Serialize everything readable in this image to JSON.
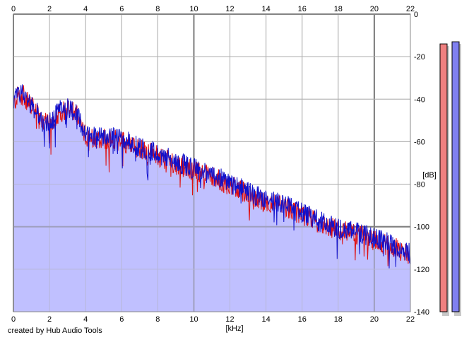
{
  "chart_data": {
    "type": "area",
    "title": "",
    "xlabel": "[kHz]",
    "ylabel": "[dB]",
    "xlim": [
      0,
      22
    ],
    "ylim": [
      -140,
      0
    ],
    "x_ticks": [
      0,
      2,
      4,
      6,
      8,
      10,
      12,
      14,
      16,
      18,
      20,
      22
    ],
    "y_ticks": [
      0,
      -20,
      -40,
      -60,
      -80,
      -100,
      -120,
      -140
    ],
    "grid": true,
    "legend": "none",
    "spectrum_envelope": {
      "x_khz": [
        0,
        0.3,
        0.6,
        1.0,
        1.5,
        2.0,
        2.5,
        3.0,
        3.5,
        4.0,
        5.0,
        6.0,
        7.0,
        8.0,
        9.0,
        10.0,
        11.0,
        12.0,
        13.0,
        14.0,
        15.0,
        16.0,
        17.0,
        18.0,
        19.0,
        20.0,
        21.0,
        22.0
      ],
      "y_db": [
        -42,
        -37,
        -38,
        -43,
        -49,
        -52,
        -46,
        -44,
        -47,
        -57,
        -58,
        -59,
        -63,
        -66,
        -70,
        -73,
        -76,
        -80,
        -84,
        -88,
        -90,
        -94,
        -98,
        -101,
        -103,
        -106,
        -109,
        -113
      ]
    },
    "series": [
      {
        "color": "#e01010"
      },
      {
        "color": "#1010cc"
      }
    ],
    "fill_color": "#c0c0ff",
    "level_meters": [
      {
        "level_db": -14,
        "color": "#f08080"
      },
      {
        "level_db": -13,
        "color": "#8080f0"
      }
    ]
  },
  "footer": {
    "credit": "created by Hub Audio Tools"
  }
}
